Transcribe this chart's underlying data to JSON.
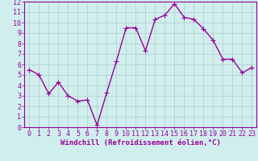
{
  "x": [
    0,
    1,
    2,
    3,
    4,
    5,
    6,
    7,
    8,
    9,
    10,
    11,
    12,
    13,
    14,
    15,
    16,
    17,
    18,
    19,
    20,
    21,
    22,
    23
  ],
  "y": [
    5.5,
    5.0,
    3.2,
    4.3,
    3.0,
    2.5,
    2.6,
    0.2,
    3.3,
    6.3,
    9.5,
    9.5,
    7.3,
    10.3,
    10.7,
    11.8,
    10.5,
    10.3,
    9.4,
    8.3,
    6.5,
    6.5,
    5.2,
    5.7
  ],
  "line_color": "#990099",
  "marker": "+",
  "marker_size": 4,
  "bg_color": "#d0eeee",
  "grid_color": "#b0cccc",
  "xlabel": "Windchill (Refroidissement éolien,°C)",
  "bottom_bar_color": "#8800aa",
  "xlim": [
    -0.5,
    23.5
  ],
  "ylim": [
    0,
    12
  ],
  "xticks": [
    0,
    1,
    2,
    3,
    4,
    5,
    6,
    7,
    8,
    9,
    10,
    11,
    12,
    13,
    14,
    15,
    16,
    17,
    18,
    19,
    20,
    21,
    22,
    23
  ],
  "yticks": [
    0,
    1,
    2,
    3,
    4,
    5,
    6,
    7,
    8,
    9,
    10,
    11,
    12
  ],
  "label_color": "#990099",
  "tick_label_color": "#990099",
  "bottom_text_color": "#ffffff",
  "axis_label_fontsize": 6.5,
  "tick_fontsize": 6.0,
  "linewidth": 1.0
}
